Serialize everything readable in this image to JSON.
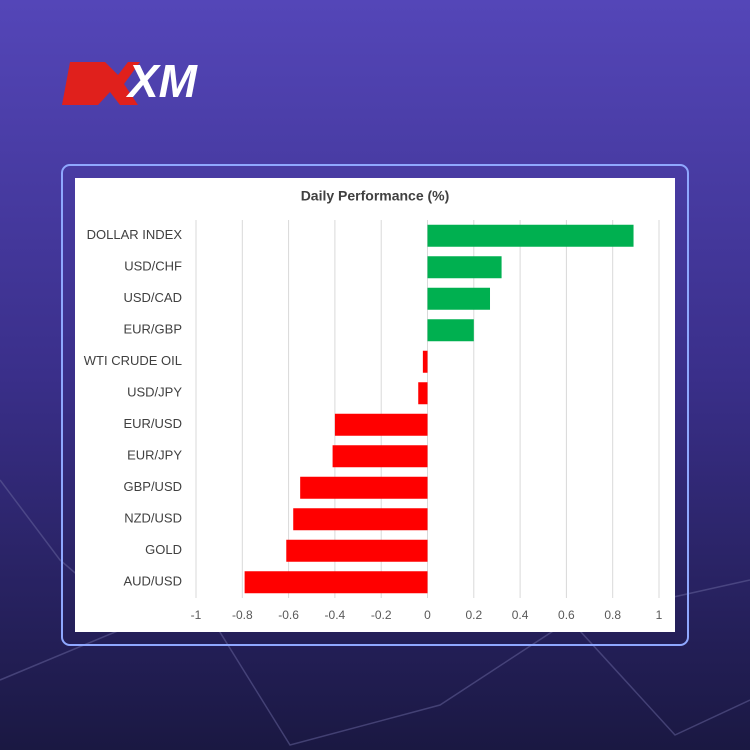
{
  "logo": "XM",
  "chart_data": {
    "type": "bar",
    "orientation": "horizontal",
    "title": "Daily Performance  (%)",
    "categories": [
      "DOLLAR INDEX",
      "USD/CHF",
      "USD/CAD",
      "EUR/GBP",
      "WTI CRUDE OIL",
      "USD/JPY",
      "EUR/USD",
      "EUR/JPY",
      "GBP/USD",
      "NZD/USD",
      "GOLD",
      "AUD/USD"
    ],
    "values": [
      0.89,
      0.32,
      0.27,
      0.2,
      -0.02,
      -0.04,
      -0.4,
      -0.41,
      -0.55,
      -0.58,
      -0.61,
      -0.79
    ],
    "positive_color": "#00b050",
    "negative_color": "#ff0000",
    "xlim": [
      -1,
      1
    ],
    "xticks": [
      -1,
      -0.8,
      -0.6,
      -0.4,
      -0.2,
      0,
      0.2,
      0.4,
      0.6,
      0.8,
      1
    ],
    "grid": true
  }
}
